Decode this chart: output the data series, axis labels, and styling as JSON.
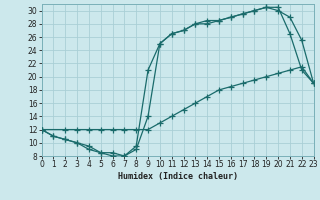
{
  "xlabel": "Humidex (Indice chaleur)",
  "bg_color": "#cce8ec",
  "grid_color": "#aacfd6",
  "line_color": "#1a6b6b",
  "marker": "+",
  "markersize": 4,
  "linewidth": 0.9,
  "xlim": [
    0,
    23
  ],
  "ylim": [
    8,
    31
  ],
  "xticks": [
    0,
    1,
    2,
    3,
    4,
    5,
    6,
    7,
    8,
    9,
    10,
    11,
    12,
    13,
    14,
    15,
    16,
    17,
    18,
    19,
    20,
    21,
    22,
    23
  ],
  "yticks": [
    8,
    10,
    12,
    14,
    16,
    18,
    20,
    22,
    24,
    26,
    28,
    30
  ],
  "line1_x": [
    0,
    1,
    2,
    3,
    4,
    5,
    6,
    7,
    8,
    9,
    10,
    11,
    12,
    13,
    14,
    15,
    16,
    17,
    18,
    19,
    20,
    21,
    22,
    23
  ],
  "line1_y": [
    12,
    11,
    10.5,
    10,
    9.5,
    8.5,
    8.5,
    8,
    9,
    14,
    25,
    26.5,
    27,
    28,
    28.5,
    28.5,
    29,
    29.5,
    30,
    30.5,
    30.5,
    26.5,
    21,
    19
  ],
  "line2_x": [
    0,
    1,
    2,
    3,
    4,
    5,
    6,
    7,
    8,
    9,
    10,
    11,
    12,
    13,
    14,
    15,
    16,
    17,
    18,
    19,
    20,
    21,
    22,
    23
  ],
  "line2_y": [
    12,
    11,
    10.5,
    10,
    9,
    8.5,
    8,
    8,
    9.5,
    21,
    25,
    26.5,
    27,
    28,
    28,
    28.5,
    29,
    29.5,
    30,
    30.5,
    30,
    29,
    25.5,
    19
  ],
  "line3_x": [
    0,
    2,
    3,
    4,
    5,
    6,
    7,
    8,
    9,
    10,
    11,
    12,
    13,
    14,
    15,
    16,
    17,
    18,
    19,
    20,
    21,
    22,
    23
  ],
  "line3_y": [
    12,
    12,
    12,
    12,
    12,
    12,
    12,
    12,
    12,
    13,
    14,
    15,
    16,
    17,
    18,
    18.5,
    19,
    19.5,
    20,
    20.5,
    21,
    21.5,
    19
  ]
}
